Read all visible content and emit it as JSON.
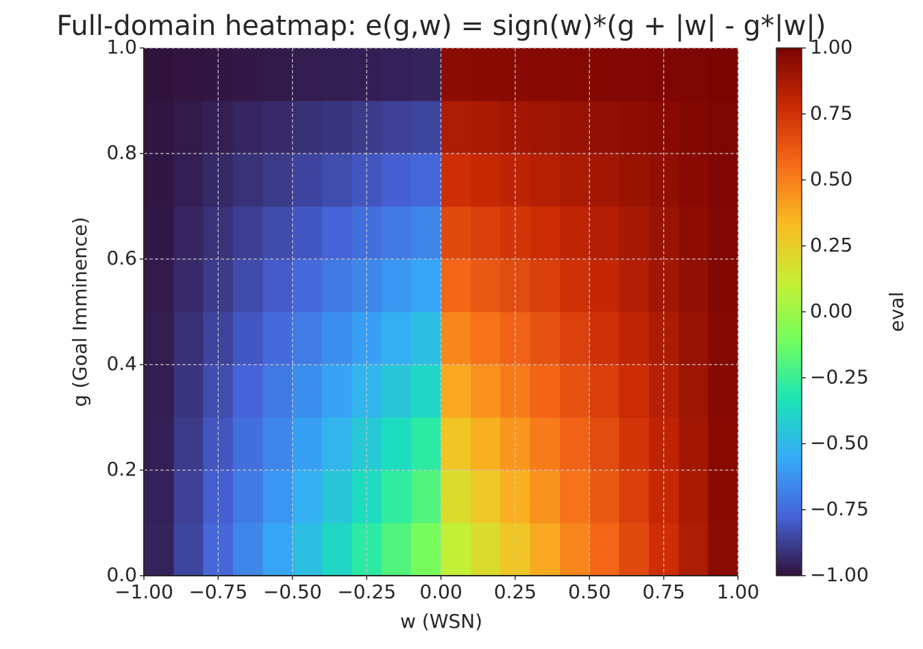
{
  "chart_data": {
    "type": "heatmap",
    "title": "Full-domain heatmap: e(g,w) = sign(w)*(g + |w| - g*|w|)",
    "x_label": "w (WSN)",
    "y_label": "g (Goal Imminence)",
    "colorbar_label": "eval",
    "x": [
      -0.95,
      -0.85,
      -0.75,
      -0.65,
      -0.55,
      -0.45,
      -0.35,
      -0.25,
      -0.15,
      -0.05,
      0.05,
      0.15,
      0.25,
      0.35,
      0.45,
      0.55,
      0.65,
      0.75,
      0.85,
      0.95
    ],
    "y": [
      0.05,
      0.15,
      0.25,
      0.35,
      0.45,
      0.55,
      0.65,
      0.75,
      0.85,
      0.95
    ],
    "z": [
      [
        -0.9525,
        -0.8575,
        -0.7625,
        -0.6675,
        -0.5725,
        -0.4775,
        -0.3825,
        -0.2875,
        -0.1925,
        -0.0975,
        0.0975,
        0.1925,
        0.2875,
        0.3825,
        0.4775,
        0.5725,
        0.6675,
        0.7625,
        0.8575,
        0.9525
      ],
      [
        -0.9575,
        -0.8725,
        -0.7875,
        -0.7025,
        -0.6175,
        -0.5325,
        -0.4475,
        -0.3625,
        -0.2775,
        -0.1925,
        0.1925,
        0.2775,
        0.3625,
        0.4475,
        0.5325,
        0.6175,
        0.7025,
        0.7875,
        0.8725,
        0.9575
      ],
      [
        -0.9625,
        -0.8875,
        -0.8125,
        -0.7375,
        -0.6625,
        -0.5875,
        -0.5125,
        -0.4375,
        -0.3625,
        -0.2875,
        0.2875,
        0.3625,
        0.4375,
        0.5125,
        0.5875,
        0.6625,
        0.7375,
        0.8125,
        0.8875,
        0.9625
      ],
      [
        -0.9675,
        -0.9025,
        -0.8375,
        -0.7725,
        -0.7075,
        -0.6425,
        -0.5775,
        -0.5125,
        -0.4475,
        -0.3825,
        0.3825,
        0.4475,
        0.5125,
        0.5775,
        0.6425,
        0.7075,
        0.7725,
        0.8375,
        0.9025,
        0.9675
      ],
      [
        -0.9725,
        -0.9175,
        -0.8625,
        -0.8075,
        -0.7525,
        -0.6975,
        -0.6425,
        -0.5875,
        -0.5325,
        -0.4775,
        0.4775,
        0.5325,
        0.5875,
        0.6425,
        0.6975,
        0.7525,
        0.8075,
        0.8625,
        0.9175,
        0.9725
      ],
      [
        -0.9775,
        -0.9325,
        -0.8875,
        -0.8425,
        -0.7975,
        -0.7525,
        -0.7075,
        -0.6625,
        -0.6175,
        -0.5725,
        0.5725,
        0.6175,
        0.6625,
        0.7075,
        0.7525,
        0.7975,
        0.8425,
        0.8875,
        0.9325,
        0.9775
      ],
      [
        -0.9825,
        -0.9475,
        -0.9125,
        -0.8775,
        -0.8425,
        -0.8075,
        -0.7725,
        -0.7375,
        -0.7025,
        -0.6675,
        0.6675,
        0.7025,
        0.7375,
        0.7725,
        0.8075,
        0.8425,
        0.8775,
        0.9125,
        0.9475,
        0.9825
      ],
      [
        -0.9875,
        -0.9625,
        -0.9375,
        -0.9125,
        -0.8875,
        -0.8625,
        -0.8375,
        -0.8125,
        -0.7875,
        -0.7625,
        0.7625,
        0.7875,
        0.8125,
        0.8375,
        0.8625,
        0.8875,
        0.9125,
        0.9375,
        0.9625,
        0.9875
      ],
      [
        -0.9925,
        -0.9775,
        -0.9625,
        -0.9475,
        -0.9325,
        -0.9175,
        -0.9025,
        -0.8875,
        -0.8725,
        -0.8575,
        0.8575,
        0.8725,
        0.8875,
        0.9025,
        0.9175,
        0.9325,
        0.9475,
        0.9625,
        0.9775,
        0.9925
      ],
      [
        -0.9975,
        -0.9925,
        -0.9875,
        -0.9825,
        -0.9775,
        -0.9725,
        -0.9675,
        -0.9625,
        -0.9575,
        -0.9525,
        0.9525,
        0.9575,
        0.9625,
        0.9675,
        0.9725,
        0.9775,
        0.9825,
        0.9875,
        0.9925,
        0.9975
      ]
    ],
    "xlim": [
      -1,
      1
    ],
    "ylim": [
      0,
      1
    ],
    "clim": [
      -1,
      1
    ],
    "xticks": [
      {
        "value": -1,
        "label": "−1.00"
      },
      {
        "value": -0.75,
        "label": "−0.75"
      },
      {
        "value": -0.5,
        "label": "−0.50"
      },
      {
        "value": -0.25,
        "label": "−0.25"
      },
      {
        "value": 0,
        "label": "0.00"
      },
      {
        "value": 0.25,
        "label": "0.25"
      },
      {
        "value": 0.5,
        "label": "0.50"
      },
      {
        "value": 0.75,
        "label": "0.75"
      },
      {
        "value": 1,
        "label": "1.00"
      }
    ],
    "yticks": [
      {
        "value": 0,
        "label": "0.0"
      },
      0.2,
      0.4,
      0.6,
      0.8,
      {
        "value": 1,
        "label": "1.0"
      }
    ],
    "cticks": [
      {
        "value": -1,
        "label": "−1.00"
      },
      {
        "value": -0.75,
        "label": "−0.75"
      },
      {
        "value": -0.5,
        "label": "−0.50"
      },
      {
        "value": -0.25,
        "label": "−0.25"
      },
      {
        "value": 0,
        "label": "0.00"
      },
      0.25,
      {
        "value": 0.5,
        "label": "0.50"
      },
      0.75,
      {
        "value": 1,
        "label": "1.00"
      }
    ],
    "colormap": [
      "#30123b",
      "#4662d7",
      "#36aaf9",
      "#1ae4b6",
      "#72fe5e",
      "#c7ef34",
      "#fabb21",
      "#f66b19",
      "#ca2a04",
      "#7a0403"
    ],
    "grid": true
  }
}
